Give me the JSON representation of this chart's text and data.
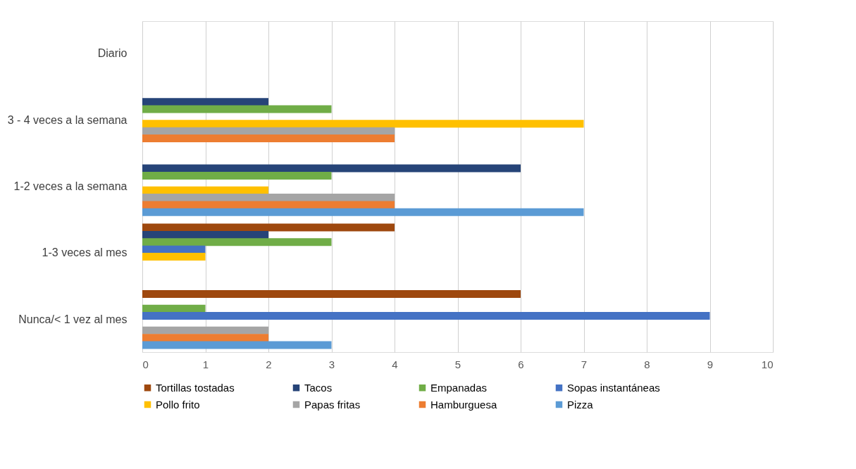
{
  "chart_data": {
    "type": "bar",
    "orientation": "horizontal",
    "categories": [
      "Diario",
      "3 - 4 veces a la semana",
      "1-2 veces a la semana",
      "1-3 veces al mes",
      "Nunca/< 1 vez al mes"
    ],
    "series": [
      {
        "name": "Tortillas tostadas",
        "color": "#9e480e",
        "values": [
          0,
          0,
          0,
          4,
          6
        ]
      },
      {
        "name": "Tacos",
        "color": "#264478",
        "values": [
          0,
          2,
          6,
          2,
          0
        ]
      },
      {
        "name": "Empanadas",
        "color": "#70ad47",
        "values": [
          0,
          3,
          3,
          3,
          1
        ]
      },
      {
        "name": "Sopas instantáneas",
        "color": "#4472c4",
        "values": [
          0,
          0,
          0,
          1,
          9
        ]
      },
      {
        "name": "Pollo frito",
        "color": "#ffc000",
        "values": [
          0,
          7,
          2,
          1,
          0
        ]
      },
      {
        "name": "Papas fritas",
        "color": "#a5a5a5",
        "values": [
          0,
          4,
          4,
          0,
          2
        ]
      },
      {
        "name": "Hamburguesa",
        "color": "#ed7d31",
        "values": [
          0,
          4,
          4,
          0,
          2
        ]
      },
      {
        "name": "Pizza",
        "color": "#5b9bd5",
        "values": [
          0,
          0,
          7,
          0,
          3
        ]
      }
    ],
    "xlim": [
      0,
      10
    ],
    "xticks": [
      0,
      1,
      2,
      3,
      4,
      5,
      6,
      7,
      8,
      9,
      10
    ],
    "grid": "x",
    "legend": "bottom"
  }
}
